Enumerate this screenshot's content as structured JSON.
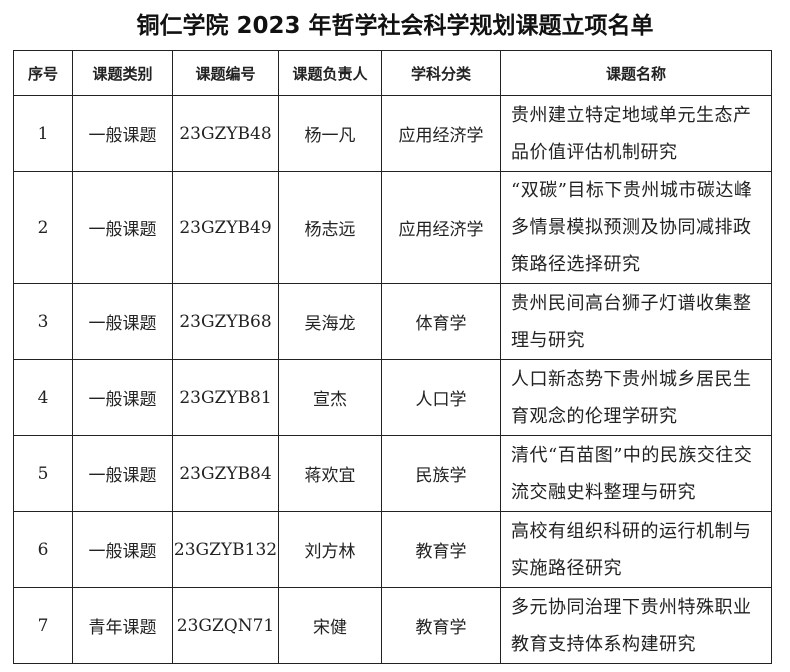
{
  "title": "铜仁学院 2023 年哲学社会科学规划课题立项名单",
  "columns": [
    "序号",
    "课题类别",
    "课题编号",
    "课题负责人",
    "学科分类",
    "课题名称"
  ],
  "rows": [
    {
      "no": "1",
      "category": "一般课题",
      "code": "23GZYB48",
      "leader": "杨一凡",
      "discipline": "应用经济学",
      "name": "贵州建立特定地域单元生态产品价值评估机制研究"
    },
    {
      "no": "2",
      "category": "一般课题",
      "code": "23GZYB49",
      "leader": "杨志远",
      "discipline": "应用经济学",
      "name": "“双碳”目标下贵州城市碳达峰多情景模拟预测及协同减排政策路径选择研究"
    },
    {
      "no": "3",
      "category": "一般课题",
      "code": "23GZYB68",
      "leader": "吴海龙",
      "discipline": "体育学",
      "name": "贵州民间高台狮子灯谱收集整理与研究"
    },
    {
      "no": "4",
      "category": "一般课题",
      "code": "23GZYB81",
      "leader": "宣杰",
      "discipline": "人口学",
      "name": "人口新态势下贵州城乡居民生育观念的伦理学研究"
    },
    {
      "no": "5",
      "category": "一般课题",
      "code": "23GZYB84",
      "leader": "蒋欢宜",
      "discipline": "民族学",
      "name": "清代“百苗图”中的民族交往交流交融史料整理与研究"
    },
    {
      "no": "6",
      "category": "一般课题",
      "code": "23GZYB132",
      "leader": "刘方林",
      "discipline": "教育学",
      "name": "高校有组织科研的运行机制与实施路径研究"
    },
    {
      "no": "7",
      "category": "青年课题",
      "code": "23GZQN71",
      "leader": "宋健",
      "discipline": "教育学",
      "name": "多元协同治理下贵州特殊职业教育支持体系构建研究"
    }
  ]
}
